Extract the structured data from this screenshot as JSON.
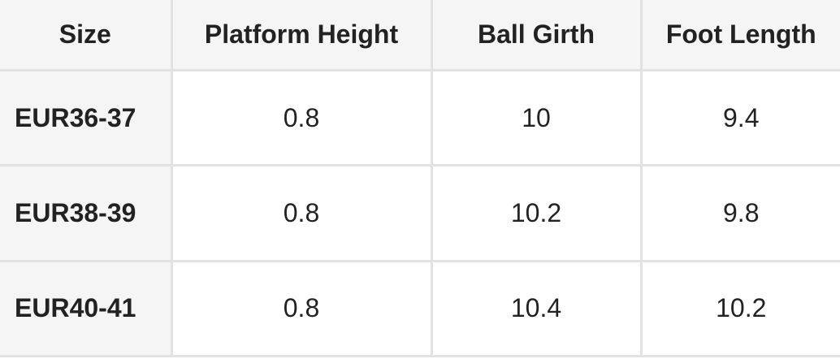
{
  "table": {
    "header": [
      "Size",
      "Platform Height",
      "Ball Girth",
      "Foot Length"
    ],
    "rows": [
      [
        "EUR36-37",
        "0.8",
        "10",
        "9.4"
      ],
      [
        "EUR38-39",
        "0.8",
        "10.2",
        "9.8"
      ],
      [
        "EUR40-41",
        "0.8",
        "10.4",
        "10.2"
      ]
    ]
  }
}
